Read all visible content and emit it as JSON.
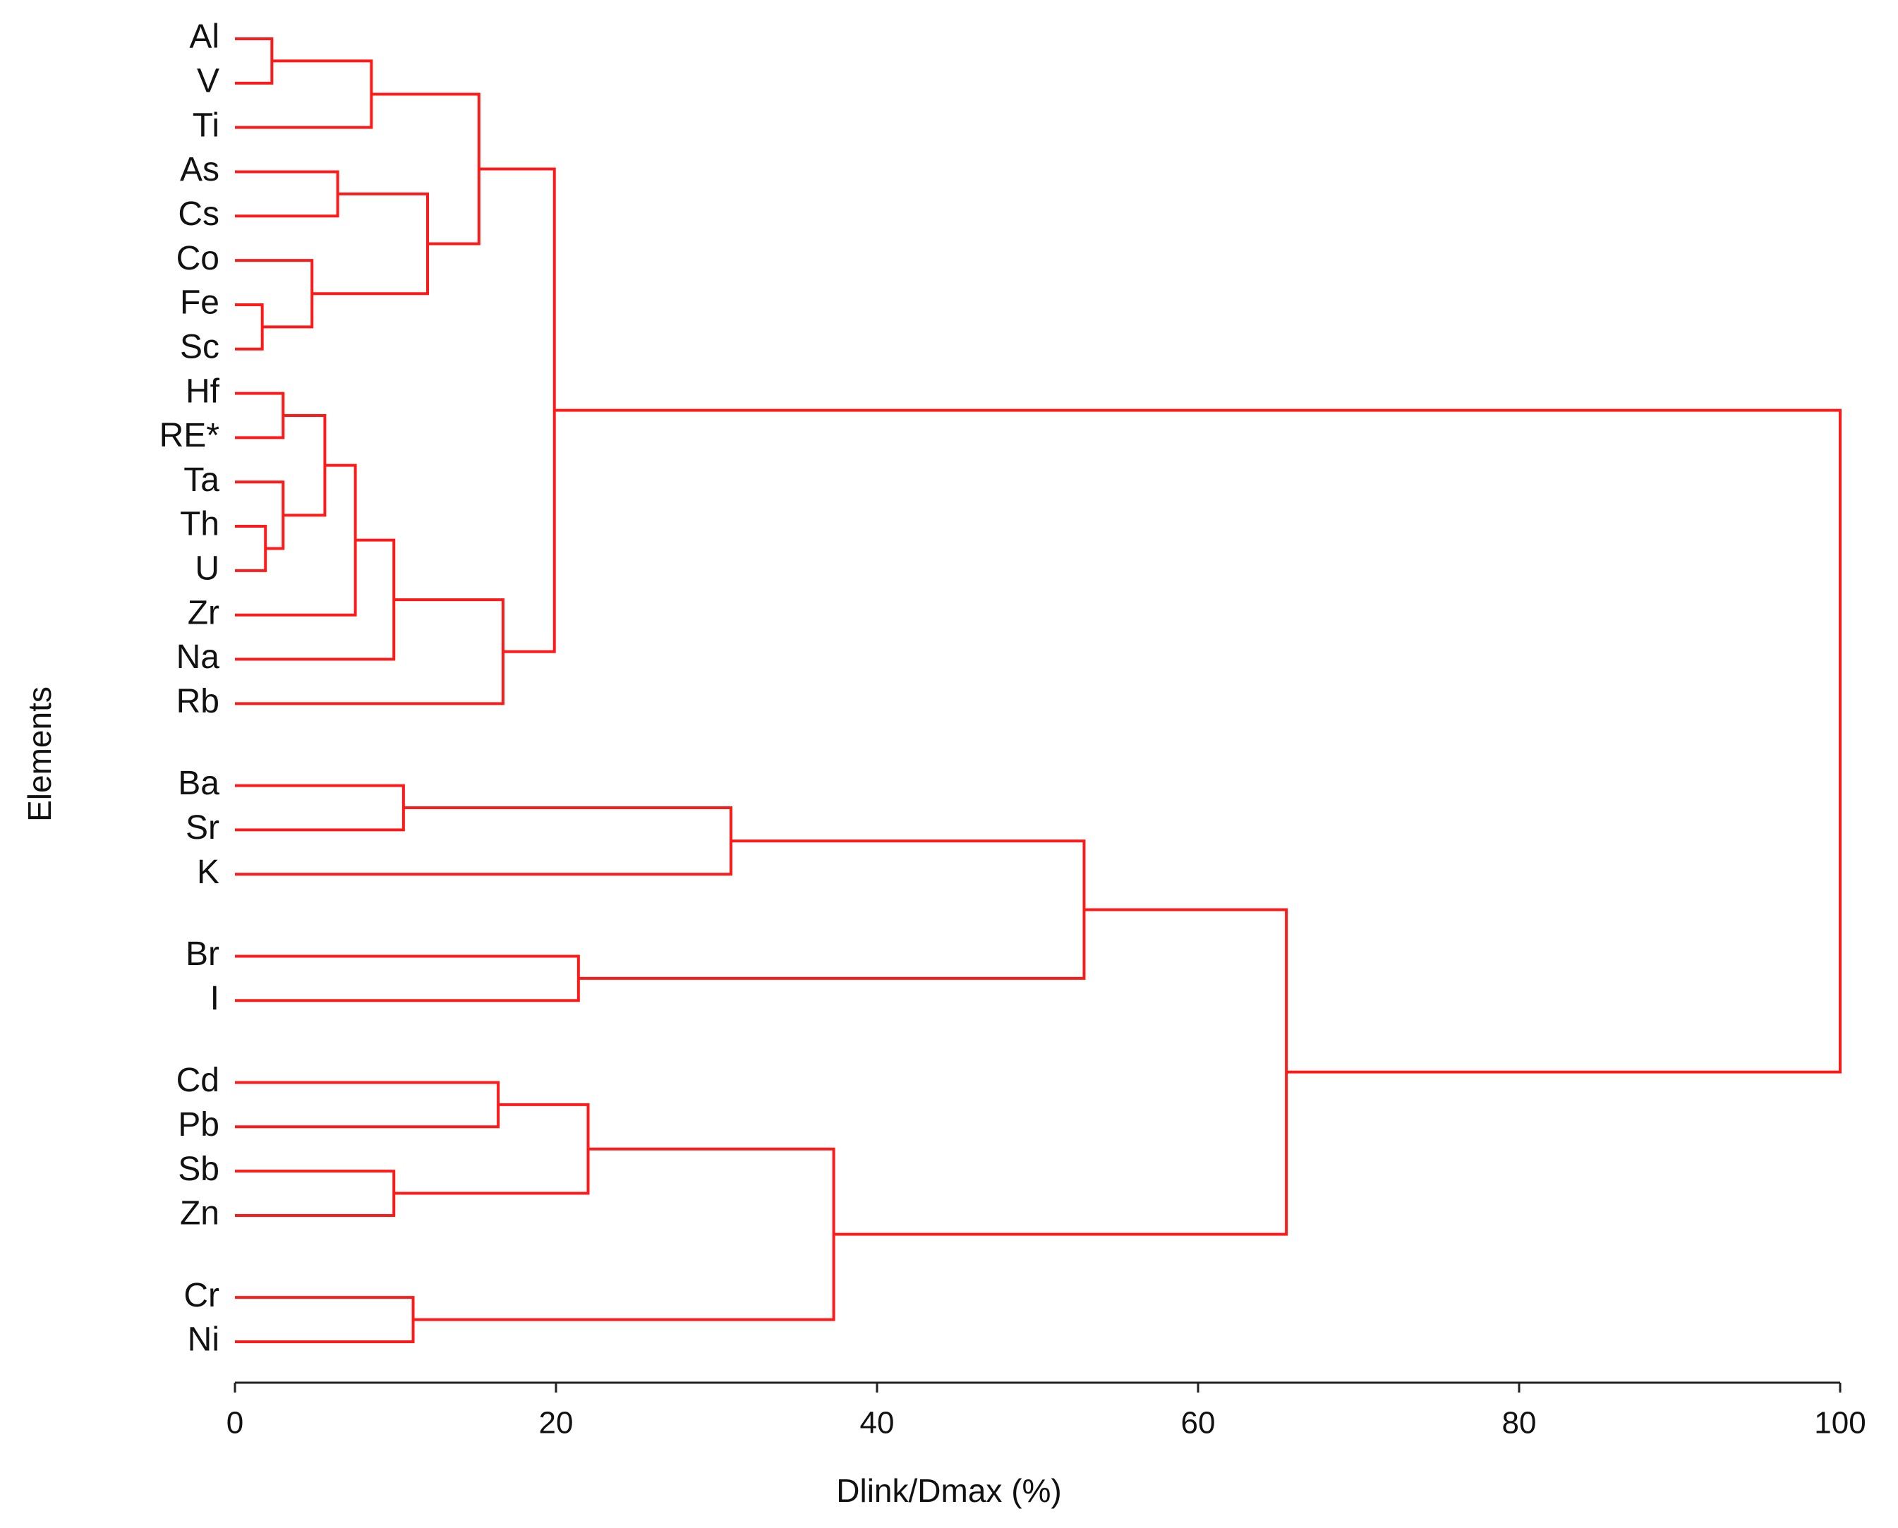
{
  "chart_data": {
    "type": "dendrogram",
    "orientation": "horizontal",
    "color": "#ff1a1a",
    "x_label": "Dlink/Dmax (%)",
    "y_label": "Elements",
    "xlim": [
      0,
      100
    ],
    "xticks": [
      0,
      20,
      40,
      60,
      80,
      100
    ],
    "leaves": [
      "Al",
      "V",
      "Ti",
      "As",
      "Cs",
      "Co",
      "Fe",
      "Sc",
      "Hf",
      "RE*",
      "Ta",
      "Th",
      "U",
      "Zr",
      "Na",
      "Rb",
      "Ba",
      "Sr",
      "K",
      "Br",
      "I",
      "Cd",
      "Pb",
      "Sb",
      "Zn",
      "Cr",
      "Ni"
    ],
    "merges": [
      {
        "children": [
          0,
          1
        ],
        "height": 2.3
      },
      {
        "children": [
          27,
          2
        ],
        "height": 8.5
      },
      {
        "children": [
          3,
          4
        ],
        "height": 6.4
      },
      {
        "children": [
          6,
          7
        ],
        "height": 1.7
      },
      {
        "children": [
          5,
          30
        ],
        "height": 4.8
      },
      {
        "children": [
          29,
          31
        ],
        "height": 12.0
      },
      {
        "children": [
          28,
          32
        ],
        "height": 15.2
      },
      {
        "children": [
          8,
          9
        ],
        "height": 3.0
      },
      {
        "children": [
          11,
          12
        ],
        "height": 1.9
      },
      {
        "children": [
          10,
          35
        ],
        "height": 3.0
      },
      {
        "children": [
          34,
          36
        ],
        "height": 5.6
      },
      {
        "children": [
          37,
          13
        ],
        "height": 7.5
      },
      {
        "children": [
          38,
          14
        ],
        "height": 9.9
      },
      {
        "children": [
          39,
          15
        ],
        "height": 16.7
      },
      {
        "children": [
          33,
          40
        ],
        "height": 19.9
      },
      {
        "children": [
          16,
          17
        ],
        "height": 10.5
      },
      {
        "children": [
          42,
          18
        ],
        "height": 30.9
      },
      {
        "children": [
          19,
          20
        ],
        "height": 21.4
      },
      {
        "children": [
          43,
          44
        ],
        "height": 52.9
      },
      {
        "children": [
          21,
          22
        ],
        "height": 16.4
      },
      {
        "children": [
          23,
          24
        ],
        "height": 9.9
      },
      {
        "children": [
          46,
          47
        ],
        "height": 22.0
      },
      {
        "children": [
          25,
          26
        ],
        "height": 11.1
      },
      {
        "children": [
          48,
          49
        ],
        "height": 37.3
      },
      {
        "children": [
          45,
          50
        ],
        "height": 65.5
      },
      {
        "children": [
          41,
          51
        ],
        "height": 100
      }
    ]
  }
}
